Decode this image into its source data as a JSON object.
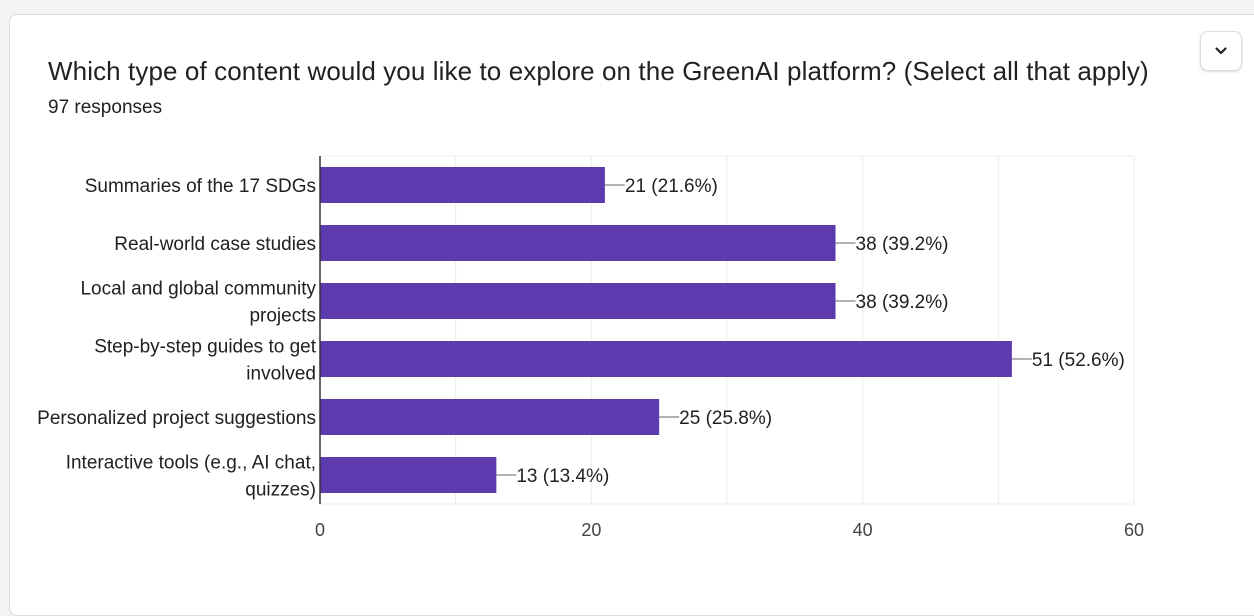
{
  "header": {
    "title": "Which type of content would you like to explore on the GreenAI platform? (Select all that apply)",
    "responses": "97 responses",
    "menu_icon": "chevron-down-icon"
  },
  "colors": {
    "bar": "#5e3aaf",
    "grid": "#ececec",
    "axis": "#333333"
  },
  "chart_data": {
    "type": "bar",
    "orientation": "horizontal",
    "categories": [
      "Summaries of the 17 SDGs",
      "Real-world case studies",
      "Local and global community projects",
      "Step-by-step guides to get involved",
      "Personalized project suggestions",
      "Interactive tools (e.g., AI chat, quizzes)"
    ],
    "category_lines": [
      [
        "Summaries of the 17 SDGs"
      ],
      [
        "Real-world case studies"
      ],
      [
        "Local and global community",
        "projects"
      ],
      [
        "Step-by-step guides to get",
        "involved"
      ],
      [
        "Personalized project suggestions"
      ],
      [
        "Interactive tools (e.g., AI chat,",
        "quizzes)"
      ]
    ],
    "values": [
      21,
      38,
      38,
      51,
      25,
      13
    ],
    "data_labels": [
      "21 (21.6%)",
      "38 (39.2%)",
      "38 (39.2%)",
      "51 (52.6%)",
      "25 (25.8%)",
      "13 (13.4%)"
    ],
    "xlim": [
      0,
      60
    ],
    "xticks": [
      0,
      20,
      40,
      60
    ],
    "grid": true,
    "legend": "none"
  }
}
